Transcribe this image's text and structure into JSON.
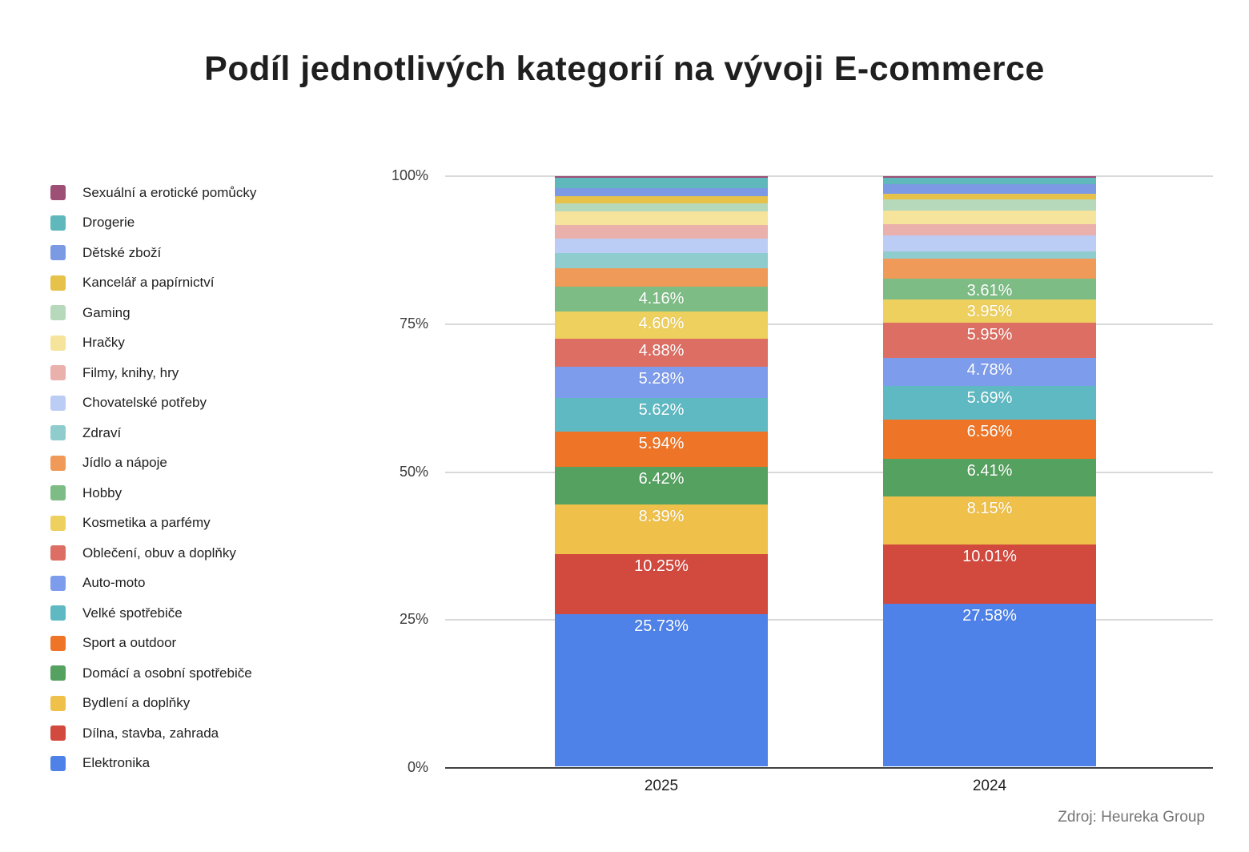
{
  "title": "Podíl jednotlivých kategorií na vývoji E-commerce",
  "source": "Zdroj: Heureka Group",
  "chart_data": {
    "type": "bar",
    "subtype": "stacked-100-percent",
    "x": [
      "2025",
      "2024"
    ],
    "y_ticks": [
      {
        "value": 0,
        "label": "0%"
      },
      {
        "value": 25,
        "label": "25%"
      },
      {
        "value": 50,
        "label": "50%"
      },
      {
        "value": 75,
        "label": "75%"
      },
      {
        "value": 100,
        "label": "100%"
      }
    ],
    "ylim": [
      0,
      100
    ],
    "grid": true,
    "legend_position": "left",
    "series_note": "ordered bottom-to-top of the stack; legend shows reverse order; values without visible labels are estimated from segment heights",
    "series": [
      {
        "name": "Elektronika",
        "color": "#4e82e9",
        "values": [
          25.73,
          27.58
        ],
        "labels": [
          "25.73%",
          "27.58%"
        ]
      },
      {
        "name": "Dílna, stavba, zahrada",
        "color": "#d2493e",
        "values": [
          10.25,
          10.01
        ],
        "labels": [
          "10.25%",
          "10.01%"
        ]
      },
      {
        "name": "Bydlení a doplňky",
        "color": "#efc04a",
        "values": [
          8.39,
          8.15
        ],
        "labels": [
          "8.39%",
          "8.15%"
        ]
      },
      {
        "name": "Domácí a osobní spotřebiče",
        "color": "#55a15f",
        "values": [
          6.42,
          6.41
        ],
        "labels": [
          "6.42%",
          "6.41%"
        ]
      },
      {
        "name": "Sport a outdoor",
        "color": "#ee7527",
        "values": [
          5.94,
          6.56
        ],
        "labels": [
          "5.94%",
          "6.56%"
        ]
      },
      {
        "name": "Velké spotřebiče",
        "color": "#5fb9c2",
        "values": [
          5.62,
          5.69
        ],
        "labels": [
          "5.62%",
          "5.69%"
        ]
      },
      {
        "name": "Auto-moto",
        "color": "#7d9ceb",
        "values": [
          5.28,
          4.78
        ],
        "labels": [
          "5.28%",
          "4.78%"
        ]
      },
      {
        "name": "Oblečení, obuv a doplňky",
        "color": "#dd6e63",
        "values": [
          4.88,
          5.95
        ],
        "labels": [
          "4.88%",
          "5.95%"
        ]
      },
      {
        "name": "Kosmetika a parfémy",
        "color": "#eed05e",
        "values": [
          4.6,
          3.95
        ],
        "labels": [
          "4.60%",
          "3.95%"
        ]
      },
      {
        "name": "Hobby",
        "color": "#7dbd85",
        "values": [
          4.16,
          3.61
        ],
        "labels": [
          "4.16%",
          "3.61%"
        ]
      },
      {
        "name": "Jídlo a nápoje",
        "color": "#ef9a58",
        "values": [
          3.16,
          3.32
        ],
        "labels": [
          "",
          ""
        ]
      },
      {
        "name": "Zdraví",
        "color": "#8fccce",
        "values": [
          2.54,
          1.28
        ],
        "labels": [
          "",
          ""
        ]
      },
      {
        "name": "Chovatelské potřeby",
        "color": "#bccdf5",
        "values": [
          2.38,
          2.65
        ],
        "labels": [
          "",
          ""
        ]
      },
      {
        "name": "Filmy, knihy, hry",
        "color": "#eab0ab",
        "values": [
          2.38,
          1.96
        ],
        "labels": [
          "",
          ""
        ]
      },
      {
        "name": "Hračky",
        "color": "#f6e39c",
        "values": [
          2.28,
          2.21
        ],
        "labels": [
          "",
          ""
        ]
      },
      {
        "name": "Gaming",
        "color": "#b7d9bb",
        "values": [
          1.41,
          1.97
        ],
        "labels": [
          "",
          ""
        ]
      },
      {
        "name": "Kancelář a papírnictví",
        "color": "#e6c24a",
        "values": [
          1.14,
          0.94
        ],
        "labels": [
          "",
          ""
        ]
      },
      {
        "name": "Dětské zboží",
        "color": "#7b9ae3",
        "values": [
          1.4,
          1.62
        ],
        "labels": [
          "",
          ""
        ]
      },
      {
        "name": "Drogerie",
        "color": "#5fb8bc",
        "values": [
          1.77,
          1.1
        ],
        "labels": [
          "",
          ""
        ]
      },
      {
        "name": "Sexuální a erotické pomůcky",
        "color": "#9e4f76",
        "values": [
          0.26,
          0.25
        ],
        "labels": [
          "",
          ""
        ]
      }
    ]
  }
}
